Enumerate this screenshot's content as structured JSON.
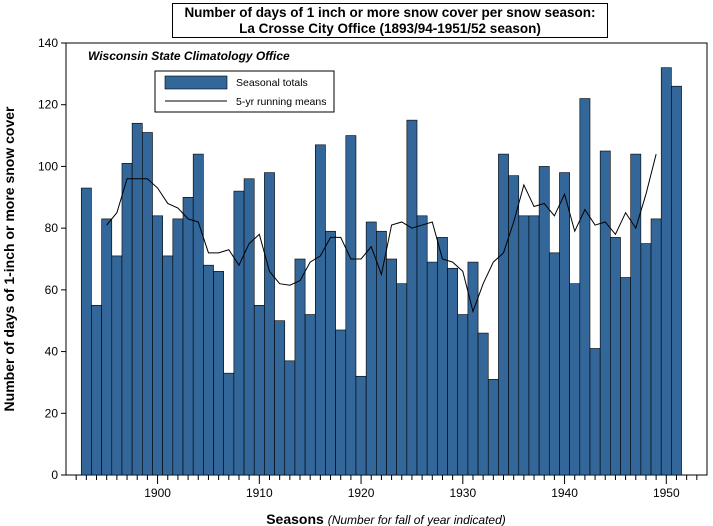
{
  "chart_data": {
    "type": "bar",
    "title": "Number of days of 1 inch or more snow cover per snow season:",
    "subtitle": "La Crosse City Office  (1893/94-1951/52 season)",
    "source": "Wisconsin State Climatology Office",
    "xlabel": "Seasons",
    "xlabel_note": "(Number for fall of year indicated)",
    "ylabel": "Number of days of 1-inch or more snow cover",
    "ylim": [
      0,
      140
    ],
    "yticks": [
      0,
      20,
      40,
      60,
      80,
      100,
      120,
      140
    ],
    "xlim": [
      1891,
      1954
    ],
    "xticks": [
      1900,
      1910,
      1920,
      1930,
      1940,
      1950
    ],
    "x": [
      1893,
      1894,
      1895,
      1896,
      1897,
      1898,
      1899,
      1900,
      1901,
      1902,
      1903,
      1904,
      1905,
      1906,
      1907,
      1908,
      1909,
      1910,
      1911,
      1912,
      1913,
      1914,
      1915,
      1916,
      1917,
      1918,
      1919,
      1920,
      1921,
      1922,
      1923,
      1924,
      1925,
      1926,
      1927,
      1928,
      1929,
      1930,
      1931,
      1932,
      1933,
      1934,
      1935,
      1936,
      1937,
      1938,
      1939,
      1940,
      1941,
      1942,
      1943,
      1944,
      1945,
      1946,
      1947,
      1948,
      1949,
      1950,
      1951
    ],
    "series": [
      {
        "name": "Seasonal totals",
        "type": "bar",
        "color": "#336699",
        "values": [
          93,
          55,
          83,
          71,
          101,
          114,
          111,
          84,
          71,
          83,
          90,
          104,
          68,
          66,
          33,
          92,
          96,
          55,
          98,
          50,
          37,
          70,
          52,
          107,
          79,
          47,
          110,
          32,
          82,
          79,
          70,
          62,
          115,
          84,
          69,
          77,
          67,
          52,
          69,
          46,
          31,
          104,
          97,
          84,
          84,
          100,
          72,
          98,
          62,
          122,
          41,
          105,
          77,
          64,
          104,
          75,
          83,
          132,
          126
        ]
      },
      {
        "name": "5-yr running means",
        "type": "line",
        "color": "#000000",
        "x": [
          1895,
          1896,
          1897,
          1898,
          1899,
          1900,
          1901,
          1902,
          1903,
          1904,
          1905,
          1906,
          1907,
          1908,
          1909,
          1910,
          1911,
          1912,
          1913,
          1914,
          1915,
          1916,
          1917,
          1918,
          1919,
          1920,
          1921,
          1922,
          1923,
          1924,
          1925,
          1926,
          1927,
          1928,
          1929,
          1930,
          1931,
          1932,
          1933,
          1934,
          1935,
          1936,
          1937,
          1938,
          1939,
          1940,
          1941,
          1942,
          1943,
          1944,
          1945,
          1946,
          1947,
          1948,
          1949
        ],
        "values": [
          81,
          85,
          96,
          96,
          96,
          93,
          88,
          86.5,
          83,
          82,
          72,
          72,
          73,
          68,
          75,
          78,
          66,
          62,
          61.5,
          63,
          69,
          71,
          77,
          77,
          70,
          70,
          74,
          65,
          81,
          82,
          80,
          81,
          82,
          70,
          69,
          66,
          53,
          62,
          69,
          72,
          82,
          94,
          87,
          88,
          84,
          91,
          79,
          86,
          81,
          82,
          78,
          85,
          80,
          91,
          104
        ]
      }
    ],
    "legend": {
      "placement": "top-left"
    },
    "grid": false
  }
}
